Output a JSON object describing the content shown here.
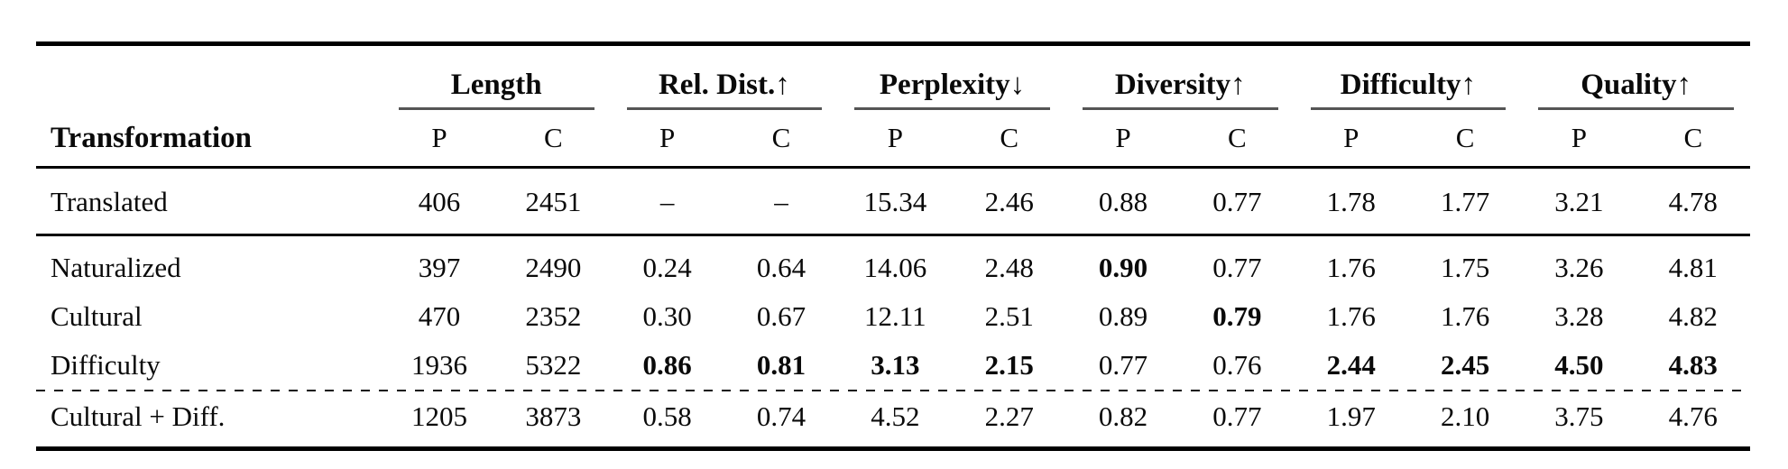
{
  "table": {
    "row_header_label": "Transformation",
    "groups": [
      {
        "label": "Length"
      },
      {
        "label": "Rel. Dist.↑"
      },
      {
        "label": "Perplexity↓"
      },
      {
        "label": "Diversity↑"
      },
      {
        "label": "Difficulty↑"
      },
      {
        "label": "Quality↑"
      }
    ],
    "sub_header": [
      "P",
      "C",
      "P",
      "C",
      "P",
      "C",
      "P",
      "C",
      "P",
      "C",
      "P",
      "C"
    ],
    "rows": [
      {
        "label": "Translated",
        "values": [
          "406",
          "2451",
          "–",
          "–",
          "15.34",
          "2.46",
          "0.88",
          "0.77",
          "1.78",
          "1.77",
          "3.21",
          "4.78"
        ]
      },
      {
        "label": "Naturalized",
        "values": [
          "397",
          "2490",
          "0.24",
          "0.64",
          "14.06",
          "2.48",
          "0.90",
          "0.77",
          "1.76",
          "1.75",
          "3.26",
          "4.81"
        ]
      },
      {
        "label": "Cultural",
        "values": [
          "470",
          "2352",
          "0.30",
          "0.67",
          "12.11",
          "2.51",
          "0.89",
          "0.79",
          "1.76",
          "1.76",
          "3.28",
          "4.82"
        ]
      },
      {
        "label": "Difficulty",
        "values": [
          "1936",
          "5322",
          "0.86",
          "0.81",
          "3.13",
          "2.15",
          "0.77",
          "0.76",
          "2.44",
          "2.45",
          "4.50",
          "4.83"
        ]
      },
      {
        "label": "Cultural + Diff.",
        "values": [
          "1205",
          "3873",
          "0.58",
          "0.74",
          "4.52",
          "2.27",
          "0.82",
          "0.77",
          "1.97",
          "2.10",
          "3.75",
          "4.76"
        ]
      }
    ],
    "bold_cells": {
      "Naturalized": [
        6
      ],
      "Cultural": [
        7
      ],
      "Difficulty": [
        2,
        3,
        4,
        5,
        8,
        9,
        10,
        11
      ]
    },
    "colors": {
      "text": "#0a0a0a",
      "rule": "#000000",
      "group_underline": "#555555"
    }
  }
}
